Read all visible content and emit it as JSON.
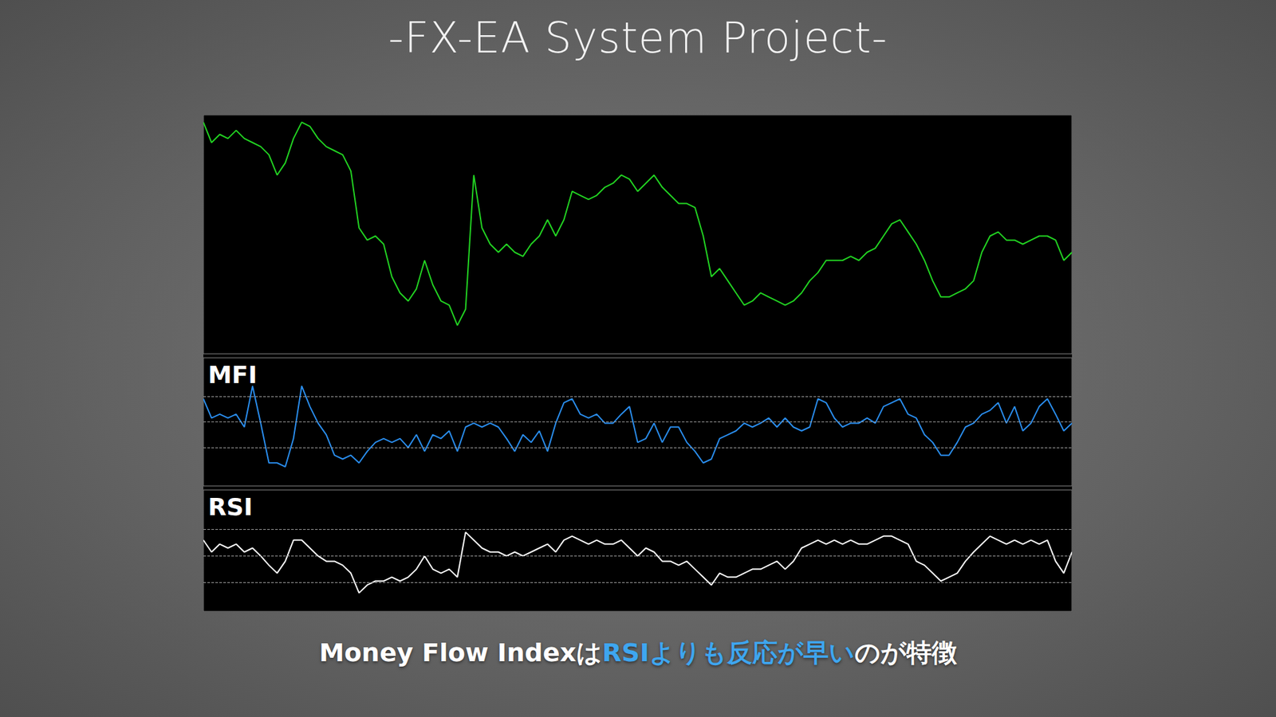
{
  "header": {
    "title": "-FX-EA System Project-"
  },
  "caption": [
    {
      "text": "Money Flow Indexは",
      "color": "#ffffff"
    },
    {
      "text": "RSIよりも反応が早い",
      "color": "#3ea6f0"
    },
    {
      "text": "のが特徴",
      "color": "#ffffff"
    }
  ],
  "chart_data": [
    {
      "type": "line",
      "color": "#22d422",
      "tick_labels": false,
      "grid": false,
      "xlim": [
        0,
        106
      ],
      "ylim": [
        0,
        100
      ],
      "x": [
        0,
        1,
        2,
        3,
        4,
        5,
        6,
        7,
        8,
        9,
        10,
        11,
        12,
        13,
        14,
        15,
        16,
        17,
        18,
        19,
        20,
        21,
        22,
        23,
        24,
        25,
        26,
        27,
        28,
        29,
        30,
        31,
        32,
        33,
        34,
        35,
        36,
        37,
        38,
        39,
        40,
        41,
        42,
        43,
        44,
        45,
        46,
        47,
        48,
        49,
        50,
        51,
        52,
        53,
        54,
        55,
        56,
        57,
        58,
        59,
        60,
        61,
        62,
        63,
        64,
        65,
        66,
        67,
        68,
        69,
        70,
        71,
        72,
        73,
        74,
        75,
        76,
        77,
        78,
        79,
        80,
        81,
        82,
        83,
        84,
        85,
        86,
        87,
        88,
        89,
        90,
        91,
        92,
        93,
        94,
        95,
        96,
        97,
        98,
        99,
        100,
        101,
        102,
        103,
        104,
        105,
        106
      ],
      "values": [
        96.9,
        88.4,
        91.8,
        90.1,
        93.5,
        90.1,
        88.4,
        86.7,
        83.3,
        74.8,
        79.9,
        90.1,
        96.9,
        95.2,
        90.1,
        86.7,
        85.0,
        83.3,
        76.5,
        52.7,
        47.6,
        49.3,
        45.9,
        32.3,
        25.5,
        22.1,
        27.2,
        39.1,
        28.9,
        22.1,
        20.4,
        11.9,
        18.7,
        74.8,
        52.7,
        45.9,
        42.5,
        45.9,
        42.5,
        40.8,
        45.9,
        49.3,
        56.1,
        49.3,
        56.1,
        68.0,
        66.3,
        64.6,
        66.3,
        69.7,
        71.4,
        74.8,
        73.1,
        68.0,
        71.4,
        74.8,
        69.7,
        66.3,
        62.9,
        62.9,
        61.2,
        49.3,
        32.3,
        35.7,
        30.6,
        25.5,
        20.4,
        22.1,
        25.5,
        23.8,
        22.1,
        20.4,
        22.1,
        25.5,
        30.6,
        34.0,
        39.1,
        39.1,
        39.1,
        40.8,
        39.1,
        42.5,
        44.2,
        49.3,
        54.4,
        56.1,
        51.0,
        45.9,
        39.1,
        30.6,
        23.8,
        23.8,
        25.5,
        27.2,
        30.6,
        42.5,
        49.3,
        51.0,
        47.6,
        47.6,
        45.9,
        47.6,
        49.3,
        49.3,
        47.6,
        39.1,
        42.5
      ]
    },
    {
      "type": "line",
      "title": "MFI",
      "color": "#2a8ef0",
      "tick_labels": false,
      "grid": true,
      "xlim": [
        0,
        106
      ],
      "ylim": [
        0,
        100
      ],
      "yticks": [
        30,
        50,
        70
      ],
      "x": [
        0,
        1,
        2,
        3,
        4,
        5,
        6,
        7,
        8,
        9,
        10,
        11,
        12,
        13,
        14,
        15,
        16,
        17,
        18,
        19,
        20,
        21,
        22,
        23,
        24,
        25,
        26,
        27,
        28,
        29,
        30,
        31,
        32,
        33,
        34,
        35,
        36,
        37,
        38,
        39,
        40,
        41,
        42,
        43,
        44,
        45,
        46,
        47,
        48,
        49,
        50,
        51,
        52,
        53,
        54,
        55,
        56,
        57,
        58,
        59,
        60,
        61,
        62,
        63,
        64,
        65,
        66,
        67,
        68,
        69,
        70,
        71,
        72,
        73,
        74,
        75,
        76,
        77,
        78,
        79,
        80,
        81,
        82,
        83,
        84,
        85,
        86,
        87,
        88,
        89,
        90,
        91,
        92,
        93,
        94,
        95,
        96,
        97,
        98,
        99,
        100,
        101,
        102,
        103,
        104,
        105,
        106
      ],
      "values": [
        68,
        53,
        56,
        53,
        56,
        46,
        78,
        49,
        18,
        18,
        15,
        37,
        78,
        62,
        49,
        40,
        24,
        21,
        24,
        18,
        27,
        34,
        37,
        34,
        37,
        30,
        40,
        27,
        40,
        37,
        43,
        27,
        46,
        49,
        46,
        49,
        46,
        37,
        27,
        40,
        34,
        43,
        27,
        49,
        65,
        68,
        56,
        53,
        56,
        49,
        49,
        56,
        62,
        34,
        37,
        49,
        34,
        46,
        46,
        34,
        27,
        18,
        21,
        37,
        40,
        43,
        49,
        46,
        49,
        53,
        46,
        53,
        46,
        43,
        46,
        68,
        65,
        53,
        46,
        49,
        49,
        53,
        49,
        62,
        65,
        68,
        56,
        53,
        40,
        34,
        24,
        24,
        34,
        46,
        49,
        56,
        59,
        65,
        49,
        62,
        43,
        49,
        62,
        68,
        56,
        43,
        49
      ]
    },
    {
      "type": "line",
      "title": "RSI",
      "color": "#ffffff",
      "tick_labels": false,
      "grid": true,
      "xlim": [
        0,
        106
      ],
      "ylim": [
        8,
        100
      ],
      "yticks": [
        30,
        50,
        70
      ],
      "x": [
        0,
        1,
        2,
        3,
        4,
        5,
        6,
        7,
        8,
        9,
        10,
        11,
        12,
        13,
        14,
        15,
        16,
        17,
        18,
        19,
        20,
        21,
        22,
        23,
        24,
        25,
        26,
        27,
        28,
        29,
        30,
        31,
        32,
        33,
        34,
        35,
        36,
        37,
        38,
        39,
        40,
        41,
        42,
        43,
        44,
        45,
        46,
        47,
        48,
        49,
        50,
        51,
        52,
        53,
        54,
        55,
        56,
        57,
        58,
        59,
        60,
        61,
        62,
        63,
        64,
        65,
        66,
        67,
        68,
        69,
        70,
        71,
        72,
        73,
        74,
        75,
        76,
        77,
        78,
        79,
        80,
        81,
        82,
        83,
        84,
        85,
        86,
        87,
        88,
        89,
        90,
        91,
        92,
        93,
        94,
        95,
        96,
        97,
        98,
        99,
        100,
        101,
        102,
        103,
        104,
        105,
        106
      ],
      "values": [
        62,
        53,
        59,
        56,
        59,
        53,
        56,
        50,
        43,
        37,
        46,
        62,
        62,
        56,
        50,
        46,
        46,
        43,
        37,
        22,
        28,
        31,
        31,
        34,
        31,
        34,
        40,
        50,
        40,
        37,
        40,
        34,
        68,
        62,
        56,
        53,
        53,
        50,
        53,
        50,
        53,
        56,
        59,
        53,
        62,
        65,
        62,
        59,
        62,
        59,
        59,
        62,
        56,
        50,
        56,
        53,
        46,
        46,
        43,
        46,
        40,
        34,
        28,
        37,
        34,
        34,
        37,
        40,
        40,
        43,
        46,
        40,
        46,
        56,
        59,
        62,
        59,
        62,
        59,
        62,
        59,
        59,
        62,
        65,
        65,
        62,
        59,
        46,
        43,
        37,
        31,
        34,
        37,
        46,
        53,
        59,
        65,
        62,
        59,
        62,
        59,
        62,
        59,
        62,
        46,
        37,
        53
      ]
    }
  ]
}
